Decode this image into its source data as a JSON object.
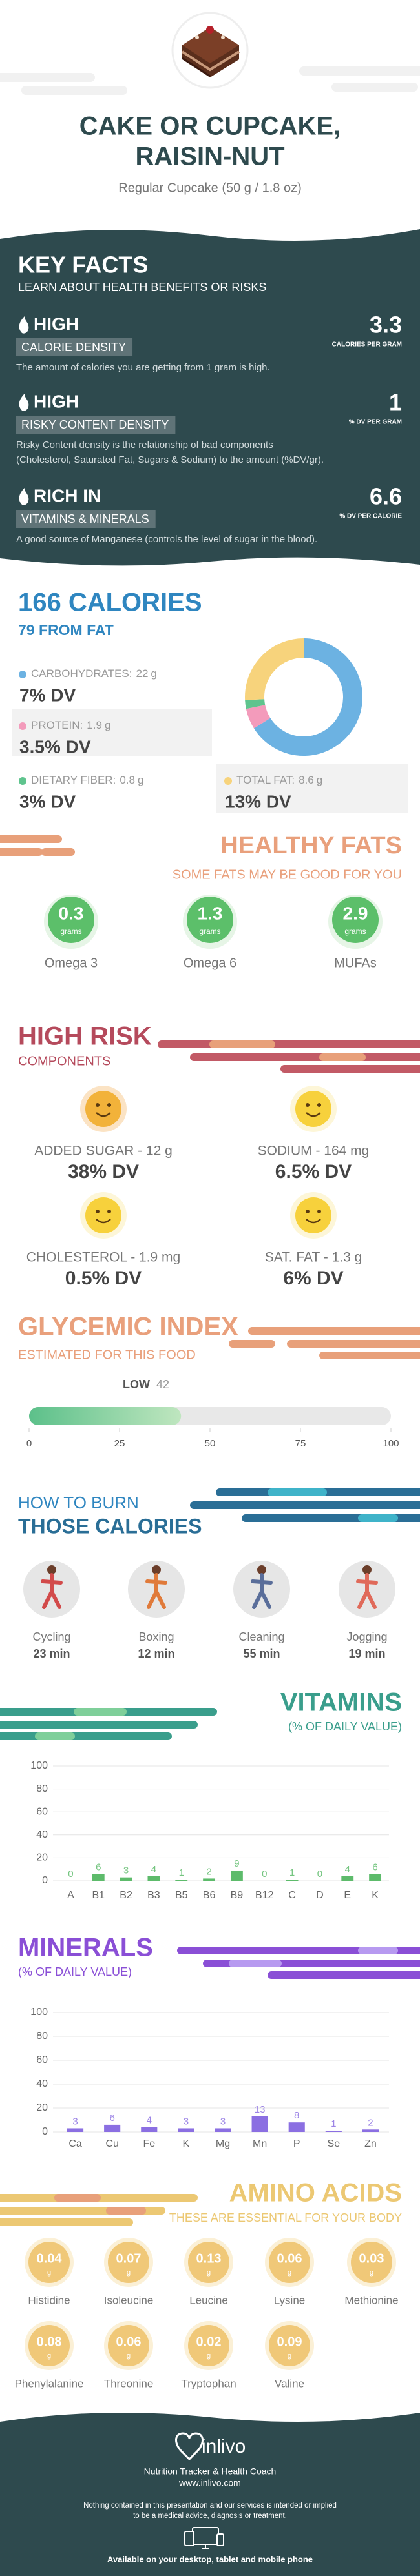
{
  "header": {
    "title": [
      "CAKE OR CUPCAKE,",
      "RAISIN-NUT"
    ],
    "subtitle": "Regular Cupcake (50 g / 1.8 oz)"
  },
  "key_facts": {
    "title": "KEY FACTS",
    "subtitle": "LEARN ABOUT HEALTH BENEFITS OR RISKS",
    "items": [
      {
        "level": "HIGH",
        "name": "CALORIE DENSITY",
        "value": 3.3,
        "unit": "CALORIES PER GRAM",
        "description": [
          "The amount of calories you are getting from 1 gram is high."
        ]
      },
      {
        "level": "HIGH",
        "name": "RISKY CONTENT DENSITY",
        "value": 1,
        "unit": "% DV PER GRAM",
        "description": [
          "Risky Content density is the relationship of bad components",
          "(Cholesterol, Saturated Fat, Sugars & Sodium) to the amount (%DV/gr)."
        ]
      },
      {
        "level": "RICH IN",
        "name": "VITAMINS & MINERALS",
        "value": 6.6,
        "unit": "% DV PER CALORIE",
        "description": [
          "A good source of Manganese (controls the level of sugar in the blood)."
        ]
      }
    ]
  },
  "calories": {
    "title": "166 CALORIES",
    "subtitle": "79 FROM FAT",
    "nutrients": [
      {
        "name": "CARBOHYDRATES:",
        "grams": 22,
        "unit": "g",
        "dv": "7% DV",
        "color": "#6cb2e2"
      },
      {
        "name": "PROTEIN:",
        "grams": 1.9,
        "unit": "g",
        "dv": "3.5% DV",
        "color": "#f39bbb"
      },
      {
        "name": "DIETARY FIBER:",
        "grams": 0.8,
        "unit": "g",
        "dv": "3% DV",
        "color": "#5fc48e"
      },
      {
        "name": "TOTAL FAT:",
        "grams": 8.6,
        "unit": "g",
        "dv": "13% DV",
        "color": "#f7d37c"
      }
    ]
  },
  "healthy_fats": {
    "title": "HEALTHY FATS",
    "subtitle": "SOME FATS MAY BE GOOD FOR YOU",
    "items": [
      {
        "value": 0.3,
        "unit": "grams",
        "name": "Omega 3"
      },
      {
        "value": 1.3,
        "unit": "grams",
        "name": "Omega 6"
      },
      {
        "value": 2.9,
        "unit": "grams",
        "name": "MUFAs"
      }
    ]
  },
  "high_risk": {
    "title": "HIGH RISK",
    "subtitle": "COMPONENTS",
    "items": [
      {
        "label": "ADDED SUGAR - 12 g",
        "dv": "38% DV"
      },
      {
        "label": "SODIUM - 164 mg",
        "dv": "6.5% DV"
      },
      {
        "label": "CHOLESTEROL - 1.9 mg",
        "dv": "0.5% DV"
      },
      {
        "label": "SAT. FAT - 1.3 g",
        "dv": "6% DV"
      }
    ]
  },
  "glycemic_index": {
    "title": "GLYCEMIC INDEX",
    "subtitle": "ESTIMATED FOR THIS FOOD",
    "level": "LOW",
    "value": 42,
    "xlim": [
      0,
      100
    ],
    "xticks": [
      0,
      25,
      50,
      75,
      100
    ]
  },
  "burn": {
    "title": [
      "HOW TO BURN",
      "THOSE CALORIES"
    ],
    "items": [
      {
        "activity": "Cycling",
        "time": "23 min"
      },
      {
        "activity": "Boxing",
        "time": "12 min"
      },
      {
        "activity": "Cleaning",
        "time": "55 min"
      },
      {
        "activity": "Jogging",
        "time": "19 min"
      }
    ]
  },
  "chart_data": [
    {
      "type": "bar",
      "title": "VITAMINS",
      "subtitle": "(% OF DAILY VALUE)",
      "categories": [
        "A",
        "B1",
        "B2",
        "B3",
        "B5",
        "B6",
        "B9",
        "B12",
        "C",
        "D",
        "E",
        "K"
      ],
      "values": [
        0,
        6,
        3,
        4,
        1,
        2,
        9,
        0,
        1,
        0,
        4,
        6
      ],
      "ylim": [
        0,
        100
      ],
      "yticks": [
        0,
        20,
        40,
        60,
        80,
        100
      ],
      "grid": true,
      "color": "#5dbb6b"
    },
    {
      "type": "bar",
      "title": "MINERALS",
      "subtitle": "(% OF DAILY VALUE)",
      "categories": [
        "Ca",
        "Cu",
        "Fe",
        "K",
        "Mg",
        "Mn",
        "P",
        "Se",
        "Zn"
      ],
      "values": [
        3,
        6,
        4,
        3,
        3,
        13,
        8,
        1,
        2
      ],
      "ylim": [
        0,
        100
      ],
      "yticks": [
        0,
        20,
        40,
        60,
        80,
        100
      ],
      "grid": true,
      "color": "#8b6fe2"
    }
  ],
  "amino_acids": {
    "title": "AMINO ACIDS",
    "subtitle": "THESE ARE ESSENTIAL FOR YOUR BODY",
    "items": [
      {
        "value": 0.04,
        "unit": "g",
        "name": "Histidine"
      },
      {
        "value": 0.07,
        "unit": "g",
        "name": "Isoleucine"
      },
      {
        "value": 0.13,
        "unit": "g",
        "name": "Leucine"
      },
      {
        "value": 0.06,
        "unit": "g",
        "name": "Lysine"
      },
      {
        "value": 0.03,
        "unit": "g",
        "name": "Methionine"
      },
      {
        "value": 0.08,
        "unit": "g",
        "name": "Phenylalanine"
      },
      {
        "value": 0.06,
        "unit": "g",
        "name": "Threonine"
      },
      {
        "value": 0.02,
        "unit": "g",
        "name": "Tryptophan"
      },
      {
        "value": 0.09,
        "unit": "g",
        "name": "Valine"
      }
    ]
  },
  "footer": {
    "brand": "inlivo",
    "tagline": "Nutrition Tracker & Health Coach",
    "url": "www.inlivo.com",
    "disclaimer": [
      "Nothing contained in this presentation and our services is intended or implied",
      "to be a medical advice, diagnosis or treatment."
    ],
    "availability": "Available on your desktop, tablet and mobile phone"
  }
}
